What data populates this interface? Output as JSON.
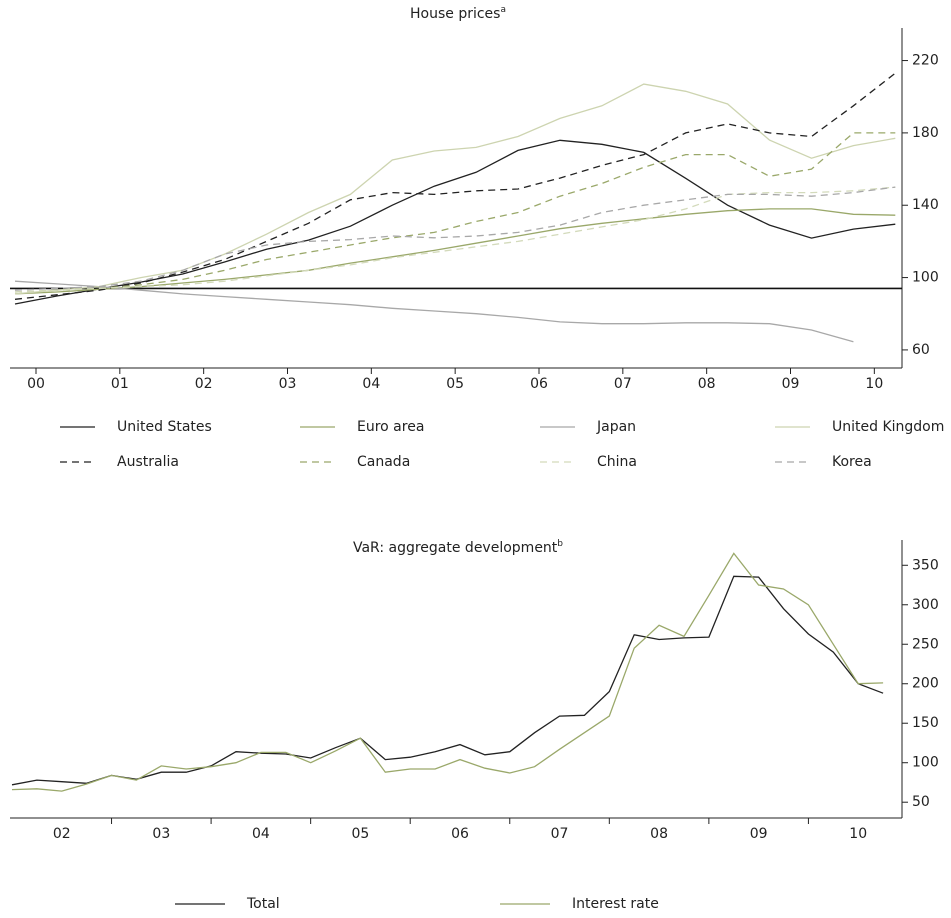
{
  "chart_data": [
    {
      "type": "line",
      "title": "House prices",
      "title_sup": "a",
      "x": [
        1999.75,
        2000.25,
        2000.75,
        2001.25,
        2001.75,
        2002.25,
        2002.75,
        2003.25,
        2003.75,
        2004.25,
        2004.75,
        2005.25,
        2005.75,
        2006.25,
        2006.75,
        2007.25,
        2007.75,
        2008.25,
        2008.75,
        2009.25,
        2009.75,
        2010.25
      ],
      "series": [
        {
          "name": "United States",
          "color": "#222222",
          "dash": false,
          "values": [
            85.4,
            89.8,
            93.7,
            97.5,
            102,
            108.6,
            115.7,
            120.7,
            128.4,
            140,
            150.5,
            158.2,
            170.3,
            175.9,
            173.7,
            169.2,
            154.9,
            140,
            129,
            121.8,
            126.8,
            129.5
          ]
        },
        {
          "name": "Euro area",
          "color": "#9aa86a",
          "dash": false,
          "values": [
            91,
            92,
            93.5,
            95,
            97,
            99,
            101.5,
            104,
            108,
            111.5,
            115,
            119,
            123,
            127,
            130,
            132.5,
            135,
            137,
            138,
            138,
            135,
            134.5
          ]
        },
        {
          "name": "Japan",
          "color": "#a8a8a8",
          "dash": false,
          "values": [
            98,
            96.5,
            95,
            93,
            91,
            89.5,
            88,
            86.5,
            85,
            83,
            81.5,
            80,
            78,
            75.5,
            74.5,
            74.5,
            75,
            75,
            74.5,
            71,
            64.5,
            null
          ]
        },
        {
          "name": "United Kingdom",
          "color": "#cdd4b0",
          "dash": false,
          "values": [
            91,
            93,
            95,
            100,
            104,
            113,
            124,
            136,
            146,
            165,
            170,
            172,
            178,
            188,
            195,
            207,
            203,
            196,
            176,
            166,
            173,
            177
          ]
        },
        {
          "name": "Australia",
          "color": "#222222",
          "dash": true,
          "values": [
            88,
            90.5,
            93,
            97,
            103,
            110,
            120,
            130,
            143,
            147,
            146,
            148,
            149,
            155,
            162,
            168,
            180,
            185,
            180,
            178,
            195,
            213
          ]
        },
        {
          "name": "Canada",
          "color": "#9aa86a",
          "dash": true,
          "values": [
            92,
            93,
            94,
            96,
            99,
            104,
            110,
            114,
            118,
            122,
            125,
            131,
            136,
            145,
            152,
            161,
            168,
            168,
            156,
            160,
            180,
            180
          ]
        },
        {
          "name": "China",
          "color": "#d3dabb",
          "dash": true,
          "values": [
            92,
            93,
            94,
            95,
            96,
            98,
            101,
            104,
            107,
            111,
            114,
            117,
            120,
            124,
            128,
            132,
            138,
            146,
            147,
            147,
            148,
            150
          ]
        },
        {
          "name": "Korea",
          "color": "#a8a8a8",
          "dash": true,
          "values": [
            93,
            94,
            95,
            98,
            104,
            113,
            118,
            120,
            121,
            123,
            122,
            123,
            125,
            129,
            136,
            140,
            143,
            146,
            146,
            145,
            147,
            150
          ]
        }
      ],
      "hline": 94,
      "xlim": [
        1999.69,
        2010.33
      ],
      "xticks": [
        {
          "value": 2000,
          "label": "00"
        },
        {
          "value": 2001,
          "label": "01"
        },
        {
          "value": 2002,
          "label": "02"
        },
        {
          "value": 2003,
          "label": "03"
        },
        {
          "value": 2004,
          "label": "04"
        },
        {
          "value": 2005,
          "label": "05"
        },
        {
          "value": 2006,
          "label": "06"
        },
        {
          "value": 2007,
          "label": "07"
        },
        {
          "value": 2008,
          "label": "08"
        },
        {
          "value": 2009,
          "label": "09"
        },
        {
          "value": 2010,
          "label": "10"
        }
      ],
      "ylim": [
        50,
        238
      ],
      "yticks": [
        60,
        100,
        140,
        180,
        220
      ]
    },
    {
      "type": "line",
      "title": "VaR: aggregate development",
      "title_sup": "b",
      "x": [
        2002,
        2002.25,
        2002.5,
        2002.75,
        2003,
        2003.25,
        2003.5,
        2003.75,
        2004,
        2004.25,
        2004.5,
        2004.75,
        2005,
        2005.25,
        2005.5,
        2005.75,
        2006,
        2006.25,
        2006.5,
        2006.75,
        2007,
        2007.25,
        2007.5,
        2007.75,
        2008,
        2008.25,
        2008.5,
        2008.75,
        2009,
        2009.25,
        2009.5,
        2009.75,
        2010,
        2010.25,
        2010.5,
        2010.75
      ],
      "series": [
        {
          "name": "Total",
          "color": "#222222",
          "dash": false,
          "values": [
            72,
            78,
            76,
            74,
            84,
            79,
            88,
            88,
            96,
            114,
            112,
            111,
            106,
            119,
            131,
            104,
            107,
            114,
            123,
            110,
            114,
            138,
            159,
            160,
            190,
            262,
            256,
            258,
            259,
            336,
            335,
            295,
            263,
            240,
            200,
            188
          ]
        },
        {
          "name": "Interest rate",
          "color": "#9aa86a",
          "dash": false,
          "values": [
            66,
            67,
            64,
            73,
            84,
            78,
            96,
            92,
            95,
            100,
            113,
            113,
            100,
            115,
            131,
            88,
            92,
            92,
            104,
            93,
            87,
            95,
            117,
            138,
            159,
            245,
            274,
            260,
            312,
            365,
            325,
            320,
            300,
            250,
            200,
            201
          ]
        }
      ],
      "xlim": [
        2001.98,
        2010.94
      ],
      "xticks": [
        {
          "value": 2002.5,
          "label": "02"
        },
        {
          "value": 2003.5,
          "label": "03"
        },
        {
          "value": 2004.5,
          "label": "04"
        },
        {
          "value": 2005.5,
          "label": "05"
        },
        {
          "value": 2006.5,
          "label": "06"
        },
        {
          "value": 2007.5,
          "label": "07"
        },
        {
          "value": 2008.5,
          "label": "08"
        },
        {
          "value": 2009.5,
          "label": "09"
        },
        {
          "value": 2010.5,
          "label": "10"
        }
      ],
      "xminorticks": [
        2003,
        2004,
        2005,
        2006,
        2007,
        2008,
        2009,
        2010
      ],
      "ylim": [
        30,
        382
      ],
      "yticks": [
        50,
        100,
        150,
        200,
        250,
        300,
        350
      ]
    }
  ]
}
